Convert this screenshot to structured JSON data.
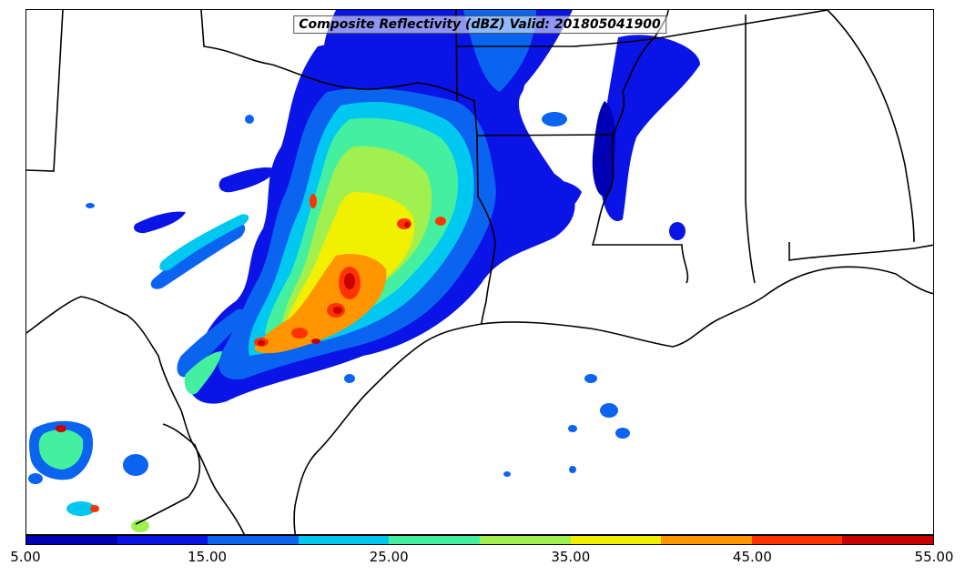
{
  "title": "Composite Reflectivity (dBZ) Valid: 201805041900",
  "colorbar": {
    "colors": [
      "#0000b4",
      "#0a14e6",
      "#0a64f0",
      "#00c8f0",
      "#44f0a0",
      "#a0f050",
      "#f0f000",
      "#ff9600",
      "#ff3200",
      "#c80000"
    ],
    "ticks": [
      "5.00",
      "15.00",
      "25.00",
      "35.00",
      "45.00",
      "55.00"
    ]
  }
}
